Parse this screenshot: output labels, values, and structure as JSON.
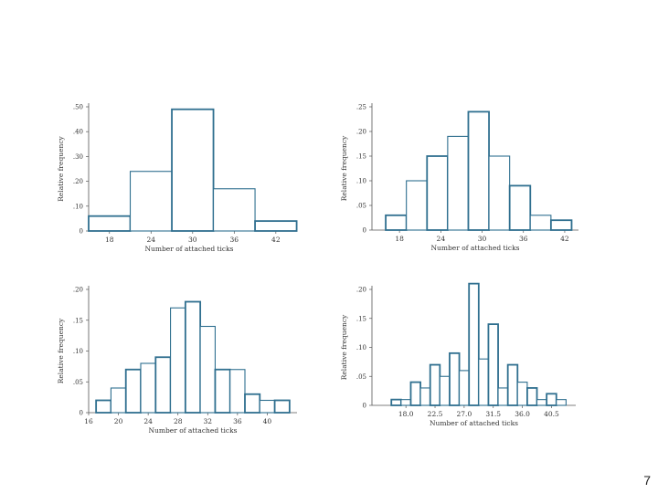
{
  "page_number": "7",
  "colors": {
    "bar_stroke": "#2f6f8f",
    "axis": "#555555",
    "text": "#333333"
  },
  "chart_data": [
    {
      "type": "bar",
      "title": "",
      "xlabel": "Number of attached ticks",
      "ylabel": "Relative frequency",
      "ytick_labels": [
        "0",
        ".10",
        ".20",
        ".30",
        ".40",
        ".50"
      ],
      "ytick_values": [
        0,
        0.1,
        0.2,
        0.3,
        0.4,
        0.5
      ],
      "ylim": [
        0,
        0.5
      ],
      "xlim": [
        15,
        44
      ],
      "xtick_labels": [
        "18",
        "24",
        "30",
        "36",
        "42"
      ],
      "xtick_values": [
        18,
        24,
        30,
        36,
        42
      ],
      "bins": [
        {
          "from": 15,
          "to": 21,
          "value": 0.06
        },
        {
          "from": 21,
          "to": 27,
          "value": 0.24
        },
        {
          "from": 27,
          "to": 33,
          "value": 0.49
        },
        {
          "from": 33,
          "to": 39,
          "value": 0.17
        },
        {
          "from": 39,
          "to": 45,
          "value": 0.04
        }
      ]
    },
    {
      "type": "bar",
      "title": "",
      "xlabel": "Number of attached ticks",
      "ylabel": "Relative frequency",
      "ytick_labels": [
        "0",
        ".05",
        ".10",
        ".15",
        ".20",
        ".25"
      ],
      "ytick_values": [
        0,
        0.05,
        0.1,
        0.15,
        0.2,
        0.25
      ],
      "ylim": [
        0,
        0.25
      ],
      "xlim": [
        14,
        44
      ],
      "xtick_labels": [
        "18",
        "24",
        "30",
        "36",
        "42"
      ],
      "xtick_values": [
        18,
        24,
        30,
        36,
        42
      ],
      "bins": [
        {
          "from": 16,
          "to": 19,
          "value": 0.03
        },
        {
          "from": 19,
          "to": 22,
          "value": 0.1
        },
        {
          "from": 22,
          "to": 25,
          "value": 0.15
        },
        {
          "from": 25,
          "to": 28,
          "value": 0.19
        },
        {
          "from": 28,
          "to": 31,
          "value": 0.24
        },
        {
          "from": 31,
          "to": 34,
          "value": 0.15
        },
        {
          "from": 34,
          "to": 37,
          "value": 0.09
        },
        {
          "from": 37,
          "to": 40,
          "value": 0.03
        },
        {
          "from": 40,
          "to": 43,
          "value": 0.02
        }
      ]
    },
    {
      "type": "bar",
      "title": "",
      "xlabel": "Number of attached ticks",
      "ylabel": "Relative frequency",
      "ytick_labels": [
        "0",
        ".05",
        ".10",
        ".15",
        ".20"
      ],
      "ytick_values": [
        0,
        0.05,
        0.1,
        0.15,
        0.2
      ],
      "ylim": [
        0,
        0.2
      ],
      "xlim": [
        16,
        44
      ],
      "xtick_labels": [
        "16",
        "20",
        "24",
        "28",
        "32",
        "36",
        "40"
      ],
      "xtick_values": [
        16,
        20,
        24,
        28,
        32,
        36,
        40
      ],
      "bins": [
        {
          "from": 17,
          "to": 19,
          "value": 0.02
        },
        {
          "from": 19,
          "to": 21,
          "value": 0.04
        },
        {
          "from": 21,
          "to": 23,
          "value": 0.07
        },
        {
          "from": 23,
          "to": 25,
          "value": 0.08
        },
        {
          "from": 25,
          "to": 27,
          "value": 0.09
        },
        {
          "from": 27,
          "to": 29,
          "value": 0.17
        },
        {
          "from": 29,
          "to": 31,
          "value": 0.18
        },
        {
          "from": 31,
          "to": 33,
          "value": 0.14
        },
        {
          "from": 33,
          "to": 35,
          "value": 0.07
        },
        {
          "from": 35,
          "to": 37,
          "value": 0.07
        },
        {
          "from": 37,
          "to": 39,
          "value": 0.03
        },
        {
          "from": 39,
          "to": 41,
          "value": 0.02
        },
        {
          "from": 41,
          "to": 43,
          "value": 0.02
        }
      ]
    },
    {
      "type": "bar",
      "title": "",
      "xlabel": "Number of attached ticks",
      "ylabel": "Relative frequency",
      "ytick_labels": [
        "0",
        ".05",
        ".10",
        ".15",
        ".20"
      ],
      "ytick_values": [
        0,
        0.05,
        0.1,
        0.15,
        0.2
      ],
      "ylim": [
        0,
        0.2
      ],
      "xlim": [
        12.75,
        44.25
      ],
      "xtick_labels": [
        "18.0",
        "22.5",
        "27.0",
        "31.5",
        "36.0",
        "40.5"
      ],
      "xtick_values": [
        18.0,
        22.5,
        27.0,
        31.5,
        36.0,
        40.5
      ],
      "bins": [
        {
          "from": 15.75,
          "to": 17.25,
          "value": 0.01
        },
        {
          "from": 17.25,
          "to": 18.75,
          "value": 0.01
        },
        {
          "from": 18.75,
          "to": 20.25,
          "value": 0.04
        },
        {
          "from": 20.25,
          "to": 21.75,
          "value": 0.03
        },
        {
          "from": 21.75,
          "to": 23.25,
          "value": 0.07
        },
        {
          "from": 23.25,
          "to": 24.75,
          "value": 0.05
        },
        {
          "from": 24.75,
          "to": 26.25,
          "value": 0.09
        },
        {
          "from": 26.25,
          "to": 27.75,
          "value": 0.06
        },
        {
          "from": 27.75,
          "to": 29.25,
          "value": 0.21
        },
        {
          "from": 29.25,
          "to": 30.75,
          "value": 0.08
        },
        {
          "from": 30.75,
          "to": 32.25,
          "value": 0.14
        },
        {
          "from": 32.25,
          "to": 33.75,
          "value": 0.03
        },
        {
          "from": 33.75,
          "to": 35.25,
          "value": 0.07
        },
        {
          "from": 35.25,
          "to": 36.75,
          "value": 0.04
        },
        {
          "from": 36.75,
          "to": 38.25,
          "value": 0.03
        },
        {
          "from": 38.25,
          "to": 39.75,
          "value": 0.01
        },
        {
          "from": 39.75,
          "to": 41.25,
          "value": 0.02
        },
        {
          "from": 41.25,
          "to": 42.75,
          "value": 0.01
        }
      ]
    }
  ]
}
